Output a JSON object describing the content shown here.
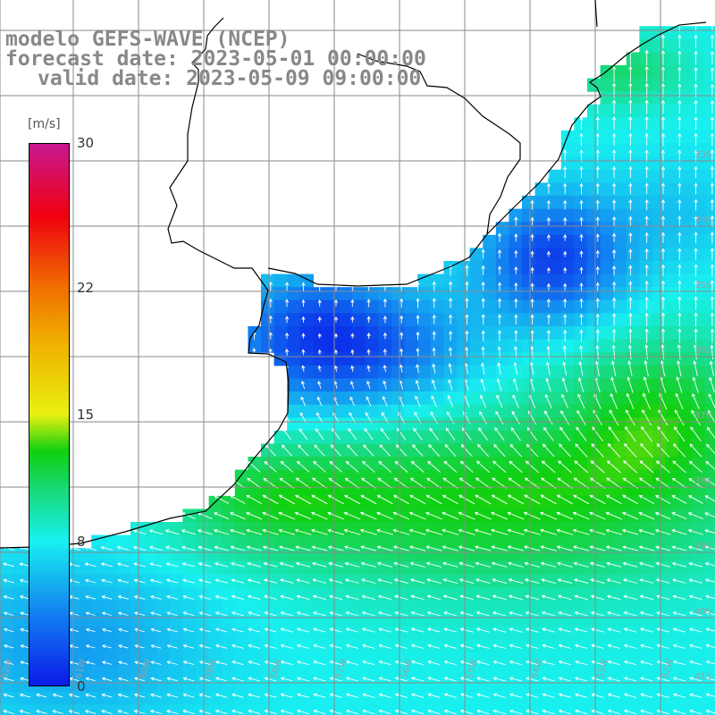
{
  "title": {
    "line1": "modelo GEFS-WAVE (NCEP)",
    "line2": "forecast date: 2023-05-01 00:00:00",
    "line3": "valid date: 2023-05-09 09:00:00"
  },
  "colorbar": {
    "unit": "[m/s]",
    "min": 0,
    "max": 30,
    "labels": [
      "30",
      "22",
      "15",
      "8",
      "0"
    ],
    "label_values": [
      30,
      22,
      15,
      8,
      0
    ],
    "stops": [
      {
        "value": 0,
        "color": "#0a1ae8"
      },
      {
        "value": 4,
        "color": "#1280f0"
      },
      {
        "value": 8,
        "color": "#18f0f0"
      },
      {
        "value": 11,
        "color": "#18d870"
      },
      {
        "value": 13,
        "color": "#10d010"
      },
      {
        "value": 15,
        "color": "#e8f010"
      },
      {
        "value": 19,
        "color": "#f0b000"
      },
      {
        "value": 22,
        "color": "#f07000"
      },
      {
        "value": 26,
        "color": "#f00010"
      },
      {
        "value": 30,
        "color": "#c81890"
      }
    ]
  },
  "lat_labels": [
    "33S",
    "34S",
    "35S",
    "36S",
    "37S",
    "38S",
    "39S",
    "40S",
    "41S"
  ],
  "lon_labels": [
    "62W",
    "61W",
    "60W",
    "59W",
    "58W",
    "57W",
    "56W",
    "55W",
    "54W",
    "53W",
    "52W"
  ],
  "colors": {
    "land": "#ffffff",
    "grid": "#8a8a8a",
    "coast": "#000000",
    "arrow": "#ffffff"
  }
}
